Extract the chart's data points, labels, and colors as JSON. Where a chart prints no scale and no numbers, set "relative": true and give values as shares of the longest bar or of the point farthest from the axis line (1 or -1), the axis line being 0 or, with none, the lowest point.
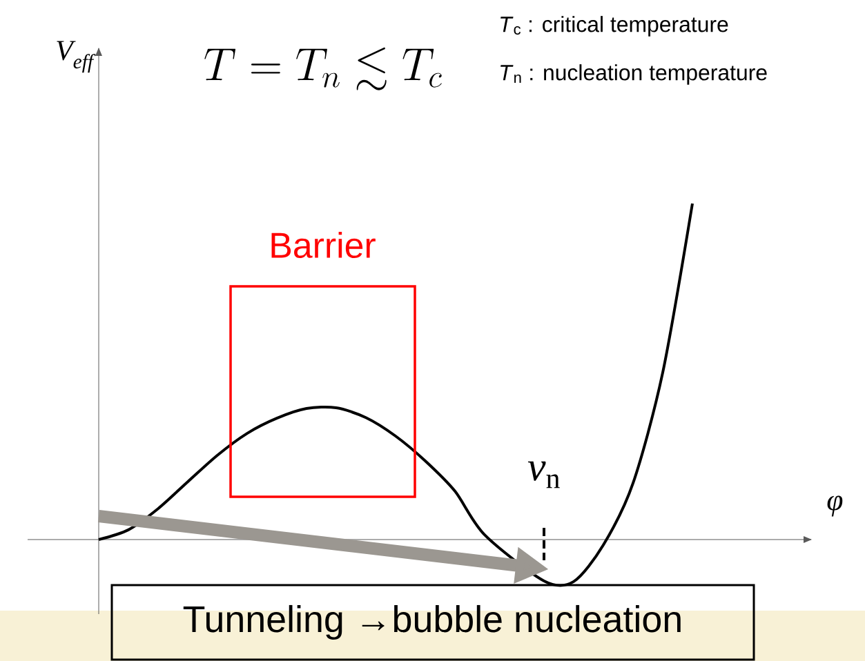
{
  "chart_data": {
    "type": "line",
    "relative": true,
    "xlabel": "φ",
    "ylabel": "V$_{eff}$",
    "categories": [
      null,
      null,
      null,
      null,
      null,
      null,
      null,
      null,
      null,
      null,
      null,
      null,
      null,
      null,
      null,
      null,
      null,
      null,
      null,
      null,
      null
    ],
    "series": [
      {
        "color": "#000000",
        "values": [
          0,
          0.029,
          0.092,
          0.172,
          0.251,
          0.316,
          0.361,
          0.39,
          0.392,
          0.363,
          0.308,
          0.234,
          0.144,
          0.014,
          null,
          -0.123,
          -0.125,
          -0.016,
          0.168,
          0.497,
          1
        ]
      }
    ],
    "annotations": [
      "T = T_n \\lesssim T_c",
      "*T*$_{c}$ : critical temperature",
      "*T*$_{n}$ : nucleation temperature",
      "Barrier",
      "*v*$_{n}$",
      "Tunneling →bubble nucleation"
    ]
  }
}
